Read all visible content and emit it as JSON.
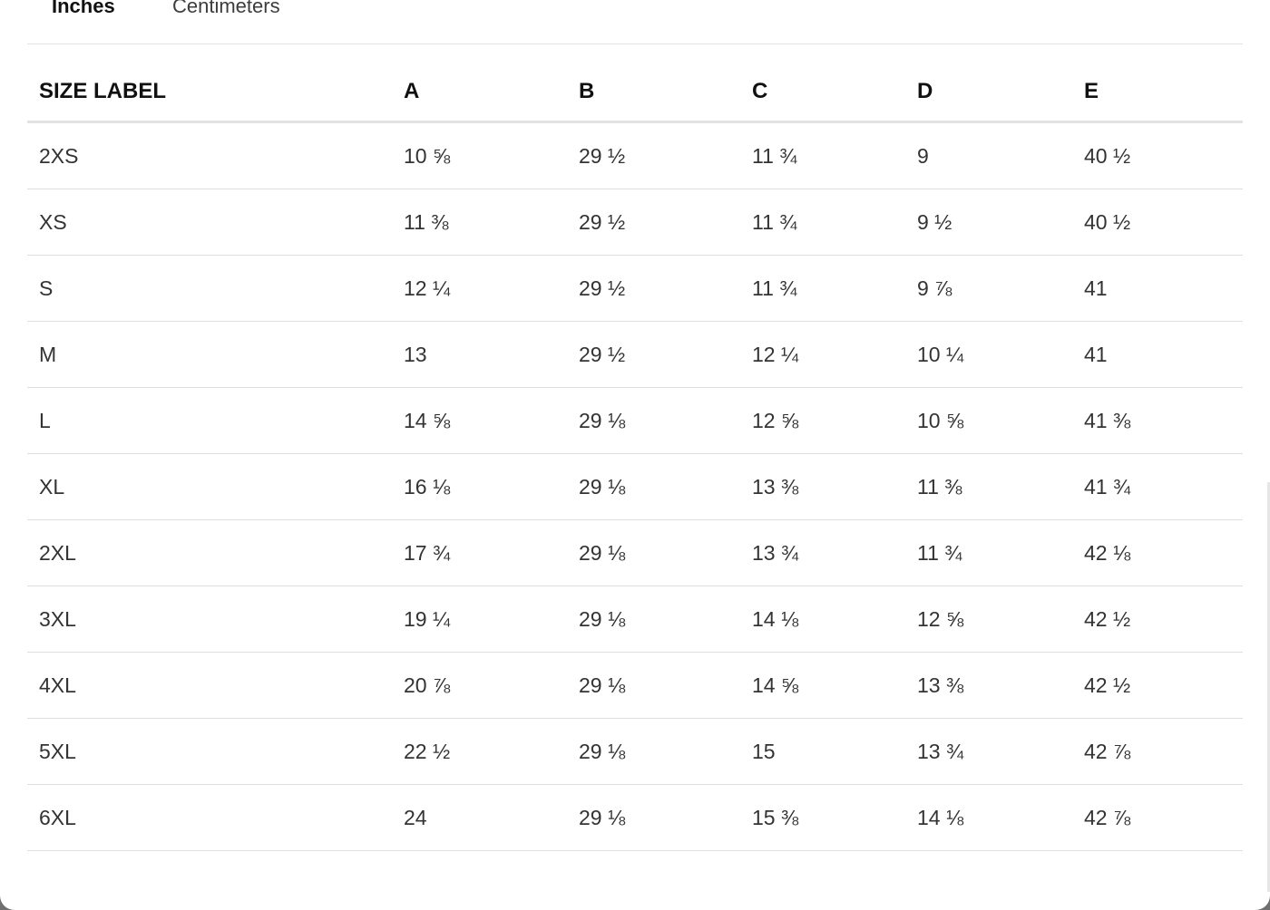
{
  "tabs": {
    "inches": "Inches",
    "centimeters": "Centimeters",
    "active": "inches"
  },
  "table": {
    "headers": [
      "SIZE LABEL",
      "A",
      "B",
      "C",
      "D",
      "E"
    ],
    "rows": [
      [
        "2XS",
        "10 ⅝",
        "29 ½",
        "11 ¾",
        "9",
        "40 ½"
      ],
      [
        "XS",
        "11 ⅜",
        "29 ½",
        "11 ¾",
        "9 ½",
        "40 ½"
      ],
      [
        "S",
        "12 ¼",
        "29 ½",
        "11 ¾",
        "9 ⅞",
        "41"
      ],
      [
        "M",
        "13",
        "29 ½",
        "12 ¼",
        "10 ¼",
        "41"
      ],
      [
        "L",
        "14 ⅝",
        "29 ⅛",
        "12 ⅝",
        "10 ⅝",
        "41 ⅜"
      ],
      [
        "XL",
        "16 ⅛",
        "29 ⅛",
        "13 ⅜",
        "11 ⅜",
        "41 ¾"
      ],
      [
        "2XL",
        "17 ¾",
        "29 ⅛",
        "13 ¾",
        "11 ¾",
        "42 ⅛"
      ],
      [
        "3XL",
        "19 ¼",
        "29 ⅛",
        "14 ⅛",
        "12 ⅝",
        "42 ½"
      ],
      [
        "4XL",
        "20 ⅞",
        "29 ⅛",
        "14 ⅝",
        "13 ⅜",
        "42 ½"
      ],
      [
        "5XL",
        "22 ½",
        "29 ⅛",
        "15",
        "13 ¾",
        "42 ⅞"
      ],
      [
        "6XL",
        "24",
        "29 ⅛",
        "15 ⅜",
        "14 ⅛",
        "42 ⅞"
      ]
    ]
  }
}
